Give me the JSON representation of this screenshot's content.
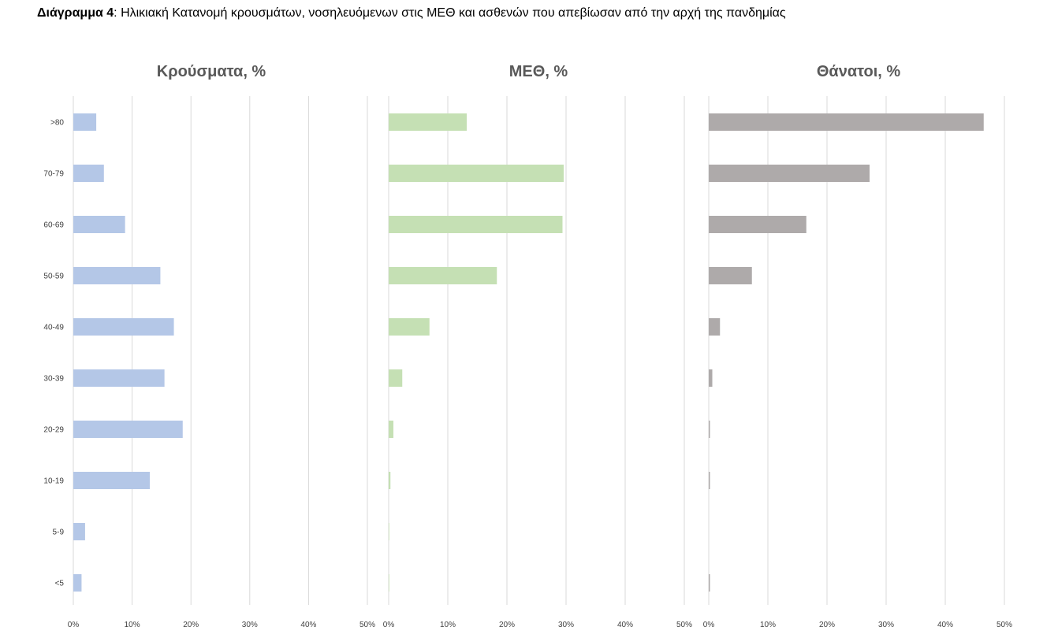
{
  "caption": {
    "label": "Διάγραμμα 4",
    "text": ": Ηλικιακή Κατανομή κρουσμάτων, νοσηλευόμενων στις ΜΕΘ και ασθενών που απεβίωσαν από την αρχή της πανδημίας"
  },
  "chart_data": [
    {
      "type": "bar",
      "orientation": "horizontal",
      "title": "Κρούσματα, %",
      "categories": [
        ">80",
        "70-79",
        "60-69",
        "50-59",
        "40-49",
        "30-39",
        "20-29",
        "10-19",
        "5-9",
        "<5"
      ],
      "values": [
        3.9,
        5.2,
        8.8,
        14.8,
        17.1,
        15.5,
        18.6,
        13.0,
        2.0,
        1.4
      ],
      "xlim": [
        0,
        50
      ],
      "ticks": [
        "0%",
        "10%",
        "20%",
        "30%",
        "40%",
        "50%"
      ],
      "grid": true,
      "color": "#b4c7e7"
    },
    {
      "type": "bar",
      "orientation": "horizontal",
      "title": "ΜΕΘ, %",
      "categories": [
        ">80",
        "70-79",
        "60-69",
        "50-59",
        "40-49",
        "30-39",
        "20-29",
        "10-19",
        "5-9",
        "<5"
      ],
      "values": [
        13.2,
        29.6,
        29.4,
        18.3,
        6.9,
        2.3,
        0.8,
        0.3,
        0.1,
        0.1
      ],
      "xlim": [
        0,
        50
      ],
      "ticks": [
        "0%",
        "10%",
        "20%",
        "30%",
        "40%",
        "50%"
      ],
      "grid": true,
      "color": "#c5e0b4"
    },
    {
      "type": "bar",
      "orientation": "horizontal",
      "title": "Θάνατοι, %",
      "categories": [
        ">80",
        "70-79",
        "60-69",
        "50-59",
        "40-49",
        "30-39",
        "20-29",
        "10-19",
        "5-9",
        "<5"
      ],
      "values": [
        46.5,
        27.2,
        16.5,
        7.3,
        1.9,
        0.6,
        0.2,
        0.2,
        0.0,
        0.2
      ],
      "xlim": [
        0,
        50
      ],
      "ticks": [
        "0%",
        "10%",
        "20%",
        "30%",
        "40%",
        "50%"
      ],
      "grid": true,
      "color": "#aeaaaa"
    }
  ]
}
